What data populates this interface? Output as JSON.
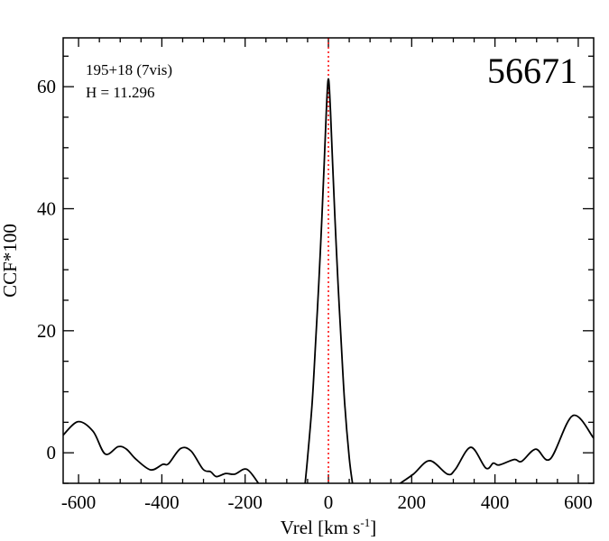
{
  "chart_data": {
    "type": "line",
    "title": "56671",
    "annotations": [
      "195+18 (7vis)",
      "H = 11.296"
    ],
    "xlabel": "Vrel [km s",
    "xlabel_sup": "-1",
    "xlabel_end": "]",
    "ylabel": "CCF*100",
    "xlim": [
      -637,
      637
    ],
    "ylim": [
      -5,
      68
    ],
    "xticks": [
      -600,
      -400,
      -200,
      0,
      200,
      400,
      600
    ],
    "yticks": [
      0,
      20,
      40,
      60
    ],
    "x_minor_step": 50,
    "y_minor_step": 5,
    "grid": false,
    "reference_line": {
      "x": 0,
      "color": "#ff0000",
      "style": "dotted"
    },
    "line_color": "#000000",
    "segments": [
      {
        "x": [
          -637,
          -601,
          -565,
          -536,
          -505,
          -485,
          -463,
          -427,
          -398,
          -384,
          -355,
          -330,
          -301,
          -283,
          -269,
          -247,
          -225,
          -196,
          -167
        ],
        "y": [
          2.9,
          5.1,
          3.5,
          -0.2,
          1.0,
          0.6,
          -1.0,
          -2.8,
          -1.9,
          -1.8,
          0.7,
          0.3,
          -2.7,
          -3.1,
          -3.9,
          -3.4,
          -3.5,
          -2.7,
          -5.1
        ]
      },
      {
        "x": [
          -56,
          -50,
          -39,
          -30,
          -23,
          -16,
          -10,
          -5,
          0,
          5,
          10,
          16,
          23,
          30,
          39,
          50,
          58
        ],
        "y": [
          -5.1,
          -0.8,
          8.2,
          19,
          27.9,
          38,
          47.6,
          56,
          61.3,
          56,
          47.6,
          38,
          27.9,
          19,
          8.2,
          -0.8,
          -5.1
        ]
      },
      {
        "x": [
          170,
          204,
          243,
          286,
          305,
          342,
          378,
          396,
          410,
          446,
          464,
          498,
          533,
          587,
          637
        ],
        "y": [
          -5.1,
          -3.5,
          -1.3,
          -3.5,
          -2.7,
          0.9,
          -2.5,
          -1.7,
          -2.0,
          -1.1,
          -1.4,
          0.6,
          -1.0,
          6.1,
          2.4
        ]
      }
    ]
  }
}
